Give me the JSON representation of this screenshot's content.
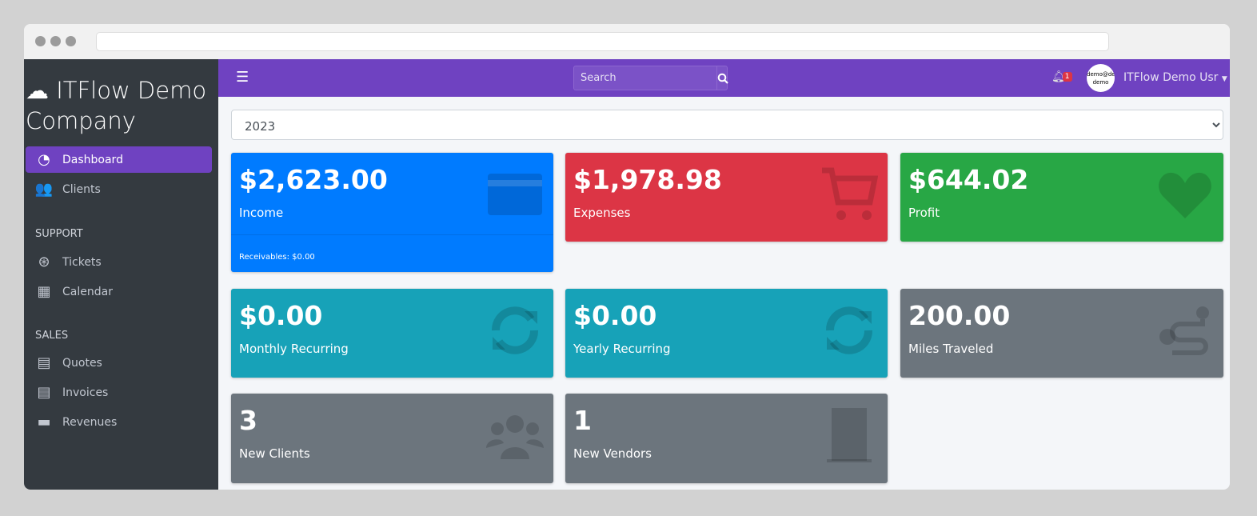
{
  "sidebar": {
    "brand": "ITFlow Demo Company",
    "items": [
      {
        "label": "Dashboard",
        "icon": "tachometer-icon",
        "active": true
      },
      {
        "label": "Clients",
        "icon": "users-icon"
      }
    ],
    "support_header": "SUPPORT",
    "support": [
      {
        "label": "Tickets",
        "icon": "life-ring-icon"
      },
      {
        "label": "Calendar",
        "icon": "calendar-icon"
      }
    ],
    "sales_header": "SALES",
    "sales": [
      {
        "label": "Quotes",
        "icon": "file-icon"
      },
      {
        "label": "Invoices",
        "icon": "file-invoice-dollar-icon"
      },
      {
        "label": "Revenues",
        "icon": "credit-card-icon"
      }
    ]
  },
  "topbar": {
    "search_placeholder": "Search",
    "notifications": "1",
    "avatar_text": "demo@demo demo",
    "user": "ITFlow Demo Usr"
  },
  "year": "2023",
  "cards": [
    {
      "value": "$2,623.00",
      "label": "Income",
      "footer": "Receivables: $0.00",
      "color": "#007bff"
    },
    {
      "value": "$1,978.98",
      "label": "Expenses",
      "color": "#dc3545"
    },
    {
      "value": "$644.02",
      "label": "Profit",
      "color": "#28a745"
    },
    {
      "value": "$0.00",
      "label": "Monthly Recurring",
      "color": "#17a2b8"
    },
    {
      "value": "$0.00",
      "label": "Yearly Recurring",
      "color": "#17a2b8"
    },
    {
      "value": "200.00",
      "label": "Miles Traveled",
      "color": "#6c757d"
    },
    {
      "value": "3",
      "label": "New Clients",
      "color": "#6c757d"
    },
    {
      "value": "1",
      "label": "New Vendors",
      "color": "#6c757d"
    }
  ]
}
